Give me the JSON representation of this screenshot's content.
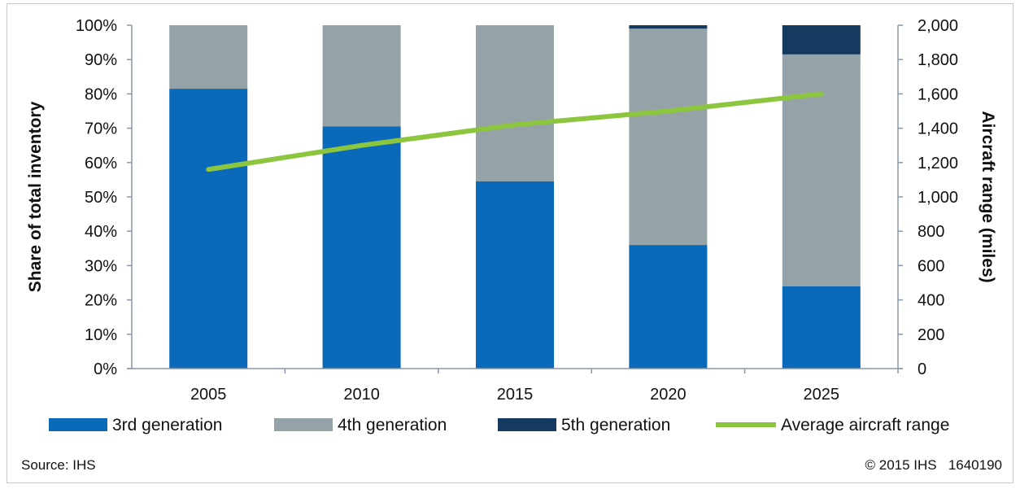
{
  "chart_data": {
    "type": "bar",
    "stacked": true,
    "categories": [
      "2005",
      "2010",
      "2015",
      "2020",
      "2025"
    ],
    "series": [
      {
        "name": "3rd generation",
        "values": [
          81.5,
          70.5,
          54.5,
          36,
          24
        ],
        "color": "#0a69b8",
        "axis": "left",
        "kind": "bar"
      },
      {
        "name": "4th generation",
        "values": [
          18.5,
          29.5,
          45.5,
          63,
          67.5
        ],
        "color": "#95a3a8",
        "axis": "left",
        "kind": "bar"
      },
      {
        "name": "5th generation",
        "values": [
          0,
          0,
          0,
          1,
          8.5
        ],
        "color": "#163a5f",
        "axis": "left",
        "kind": "bar"
      },
      {
        "name": "Average aircraft range",
        "values": [
          1160,
          1300,
          1420,
          1500,
          1600
        ],
        "color": "#8cc63f",
        "axis": "right",
        "kind": "line"
      }
    ],
    "ylabel": "Share of total inventory",
    "y2label": "Aircraft range (miles)",
    "ylim": [
      0,
      100
    ],
    "y2lim": [
      0,
      2000
    ],
    "yticks": [
      "0%",
      "10%",
      "20%",
      "30%",
      "40%",
      "50%",
      "60%",
      "70%",
      "80%",
      "90%",
      "100%"
    ],
    "y2ticks": [
      "0",
      "200",
      "400",
      "600",
      "800",
      "1,000",
      "1,200",
      "1,400",
      "1,600",
      "1,800",
      "2,000"
    ],
    "grid": false,
    "legend_position": "bottom"
  },
  "footer": {
    "source": "Source: IHS",
    "copyright": "© 2015 IHS   1640190"
  }
}
